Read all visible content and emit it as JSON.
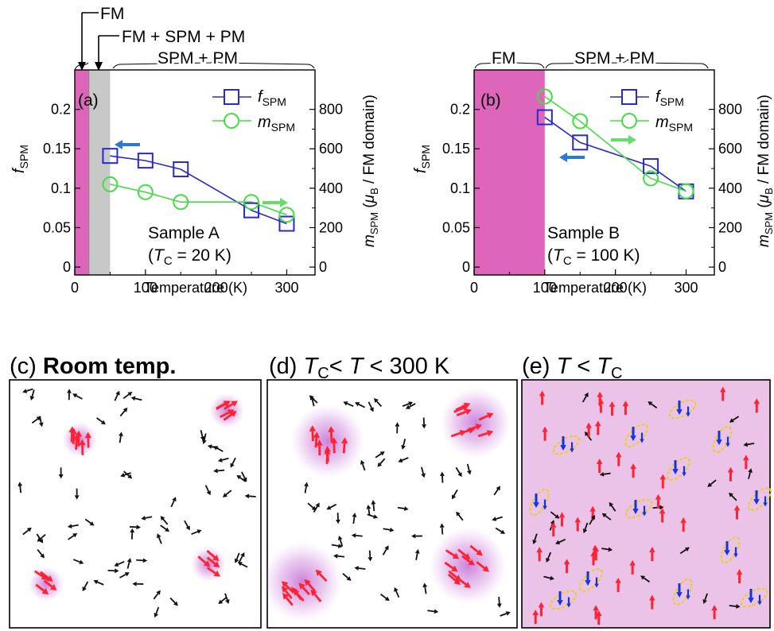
{
  "colors": {
    "f_spm": "#2a2acc",
    "m_spm": "#44dd44",
    "fm_region": "#dd66bb",
    "mixed_region": "#c8c8c8",
    "spin_default": "#111111",
    "spin_cluster": "#ff2233",
    "spin_reverse": "#1133dd",
    "fm_background": "#ebc3e8",
    "cluster_glow": "#b040c8"
  },
  "annotations": {
    "fm": "FM",
    "fm_spm_pm": "FM + SPM + PM",
    "spm_pm": "SPM + PM"
  },
  "chart_data": [
    {
      "type": "line",
      "panel": "(a)",
      "sample_line1": "Sample A",
      "tc_value": "= 20 K)",
      "xlabel": "Temperature (K)",
      "ylabel_left": "SPM",
      "ylabel_right": "SPM",
      "ylabel_right_unit": " / FM domain)",
      "xlim": [
        0,
        340
      ],
      "ylim_left": [
        -0.01,
        0.25
      ],
      "ylim_right": [
        -40,
        1000
      ],
      "x_ticks": [
        "0",
        "100",
        "200",
        "300"
      ],
      "y_left_ticks": [
        "0",
        "0.05",
        "0.1",
        "0.15",
        "0.2"
      ],
      "y_right_ticks": [
        "0",
        "200",
        "400",
        "600",
        "800"
      ],
      "regions": [
        {
          "label": "FM",
          "from": 0,
          "to": 20
        },
        {
          "label": "FM + SPM + PM",
          "from": 20,
          "to": 50
        },
        {
          "label": "SPM + PM",
          "from": 50,
          "to": 340
        }
      ],
      "series": [
        {
          "name": "f",
          "sub": "SPM",
          "axis": "left",
          "marker": "square",
          "x": [
            50,
            100,
            150,
            250,
            300
          ],
          "y": [
            0.141,
            0.135,
            0.124,
            0.072,
            0.055
          ]
        },
        {
          "name": "m",
          "sub": "SPM",
          "axis": "right",
          "marker": "circle",
          "x": [
            50,
            100,
            150,
            250,
            300
          ],
          "y": [
            420,
            380,
            330,
            330,
            265
          ]
        }
      ]
    },
    {
      "type": "line",
      "panel": "(b)",
      "sample_line1": "Sample B",
      "tc_value": "= 100 K)",
      "xlabel": "Temperature (K)",
      "ylabel_left": "SPM",
      "ylabel_right": "SPM",
      "ylabel_right_unit": " / FM domain)",
      "xlim": [
        0,
        340
      ],
      "ylim_left": [
        -0.01,
        0.25
      ],
      "ylim_right": [
        -40,
        1000
      ],
      "x_ticks": [
        "0",
        "100",
        "200",
        "300"
      ],
      "y_left_ticks": [
        "0",
        "0.05",
        "0.1",
        "0.15",
        "0.2"
      ],
      "y_right_ticks": [
        "0",
        "200",
        "400",
        "600",
        "800"
      ],
      "regions": [
        {
          "label": "FM",
          "from": 0,
          "to": 100
        },
        {
          "label": "SPM + PM",
          "from": 100,
          "to": 340
        }
      ],
      "series": [
        {
          "name": "f",
          "sub": "SPM",
          "axis": "left",
          "marker": "square",
          "x": [
            100,
            150,
            250,
            300
          ],
          "y": [
            0.19,
            0.158,
            0.128,
            0.096
          ]
        },
        {
          "name": "m",
          "sub": "SPM",
          "axis": "right",
          "marker": "circle",
          "x": [
            100,
            150,
            250,
            300
          ],
          "y": [
            865,
            740,
            450,
            385
          ]
        }
      ]
    }
  ],
  "panels": [
    {
      "label": "(c)",
      "title": "Room temp."
    },
    {
      "label": "(d)",
      "title_mid": "< ",
      "title_end": " < 300 K"
    },
    {
      "label": "(e)",
      "title_mid": " < "
    }
  ]
}
